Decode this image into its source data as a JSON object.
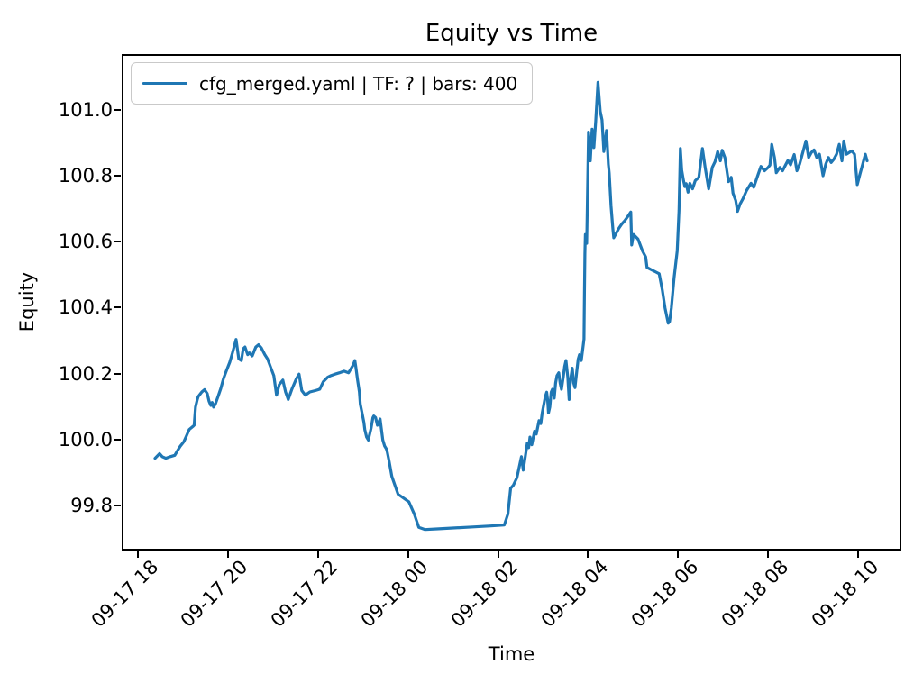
{
  "chart_data": {
    "type": "line",
    "title": "Equity vs Time",
    "xlabel": "Time",
    "ylabel": "Equity",
    "legend_label": "cfg_merged.yaml | TF: ? | bars: 400",
    "legend_position": "upper left",
    "grid": false,
    "line_color": "#1f77b4",
    "x_unit": "hours after 09-17 18:00",
    "xlim_hours": [
      -0.36,
      16.96
    ],
    "ylim": [
      99.664,
      101.168
    ],
    "x_tick_hours": [
      0,
      2,
      4,
      6,
      8,
      10,
      12,
      14,
      16
    ],
    "x_tick_labels": [
      "09-17 18",
      "09-17 20",
      "09-17 22",
      "09-18 00",
      "09-18 02",
      "09-18 04",
      "09-18 06",
      "09-18 08",
      "09-18 10"
    ],
    "y_tick_values": [
      99.8,
      100.0,
      100.2,
      100.4,
      100.6,
      100.8,
      101.0
    ],
    "y_tick_labels": [
      "99.8",
      "100.0",
      "100.2",
      "100.4",
      "100.6",
      "100.8",
      "101.0"
    ],
    "points": [
      [
        0.34,
        99.949
      ],
      [
        0.44,
        99.963
      ],
      [
        0.5,
        99.954
      ],
      [
        0.58,
        99.949
      ],
      [
        0.68,
        99.954
      ],
      [
        0.78,
        99.958
      ],
      [
        0.84,
        99.972
      ],
      [
        0.9,
        99.985
      ],
      [
        0.98,
        99.999
      ],
      [
        1.04,
        100.017
      ],
      [
        1.1,
        100.036
      ],
      [
        1.18,
        100.045
      ],
      [
        1.21,
        100.049
      ],
      [
        1.24,
        100.104
      ],
      [
        1.28,
        100.127
      ],
      [
        1.3,
        100.136
      ],
      [
        1.38,
        100.15
      ],
      [
        1.44,
        100.157
      ],
      [
        1.5,
        100.145
      ],
      [
        1.54,
        100.122
      ],
      [
        1.58,
        100.109
      ],
      [
        1.61,
        100.118
      ],
      [
        1.64,
        100.104
      ],
      [
        1.68,
        100.113
      ],
      [
        1.74,
        100.136
      ],
      [
        1.8,
        100.16
      ],
      [
        1.86,
        100.19
      ],
      [
        1.92,
        100.212
      ],
      [
        2.0,
        100.24
      ],
      [
        2.06,
        100.268
      ],
      [
        2.14,
        100.309
      ],
      [
        2.2,
        100.25
      ],
      [
        2.26,
        100.245
      ],
      [
        2.3,
        100.281
      ],
      [
        2.34,
        100.286
      ],
      [
        2.4,
        100.263
      ],
      [
        2.44,
        100.268
      ],
      [
        2.5,
        100.259
      ],
      [
        2.58,
        100.286
      ],
      [
        2.64,
        100.293
      ],
      [
        2.7,
        100.284
      ],
      [
        2.78,
        100.263
      ],
      [
        2.84,
        100.25
      ],
      [
        2.98,
        100.199
      ],
      [
        3.04,
        100.14
      ],
      [
        3.1,
        100.172
      ],
      [
        3.18,
        100.186
      ],
      [
        3.24,
        100.15
      ],
      [
        3.3,
        100.127
      ],
      [
        3.38,
        100.158
      ],
      [
        3.48,
        100.19
      ],
      [
        3.54,
        100.204
      ],
      [
        3.6,
        100.154
      ],
      [
        3.68,
        100.14
      ],
      [
        3.78,
        100.15
      ],
      [
        3.9,
        100.154
      ],
      [
        4.0,
        100.158
      ],
      [
        4.08,
        100.181
      ],
      [
        4.18,
        100.195
      ],
      [
        4.24,
        100.199
      ],
      [
        4.34,
        100.204
      ],
      [
        4.44,
        100.208
      ],
      [
        4.54,
        100.213
      ],
      [
        4.64,
        100.208
      ],
      [
        4.74,
        100.231
      ],
      [
        4.78,
        100.245
      ],
      [
        4.8,
        100.227
      ],
      [
        4.84,
        100.186
      ],
      [
        4.88,
        100.15
      ],
      [
        4.9,
        100.113
      ],
      [
        4.94,
        100.086
      ],
      [
        4.98,
        100.058
      ],
      [
        5.0,
        100.036
      ],
      [
        5.04,
        100.013
      ],
      [
        5.08,
        100.004
      ],
      [
        5.1,
        100.017
      ],
      [
        5.14,
        100.04
      ],
      [
        5.18,
        100.072
      ],
      [
        5.2,
        100.077
      ],
      [
        5.24,
        100.072
      ],
      [
        5.28,
        100.049
      ],
      [
        5.34,
        100.068
      ],
      [
        5.4,
        100.004
      ],
      [
        5.44,
        99.986
      ],
      [
        5.48,
        99.977
      ],
      [
        5.5,
        99.967
      ],
      [
        5.54,
        99.94
      ],
      [
        5.6,
        99.894
      ],
      [
        5.74,
        99.84
      ],
      [
        5.98,
        99.817
      ],
      [
        6.1,
        99.78
      ],
      [
        6.2,
        99.74
      ],
      [
        6.34,
        99.733
      ],
      [
        6.6,
        99.735
      ],
      [
        7.0,
        99.738
      ],
      [
        7.4,
        99.741
      ],
      [
        7.8,
        99.744
      ],
      [
        8.1,
        99.747
      ],
      [
        8.18,
        99.78
      ],
      [
        8.24,
        99.858
      ],
      [
        8.3,
        99.867
      ],
      [
        8.38,
        99.89
      ],
      [
        8.48,
        99.954
      ],
      [
        8.52,
        99.913
      ],
      [
        8.61,
        99.995
      ],
      [
        8.64,
        99.981
      ],
      [
        8.67,
        100.013
      ],
      [
        8.71,
        99.99
      ],
      [
        8.77,
        100.031
      ],
      [
        8.81,
        100.022
      ],
      [
        8.87,
        100.063
      ],
      [
        8.91,
        100.054
      ],
      [
        8.94,
        100.086
      ],
      [
        9.01,
        100.136
      ],
      [
        9.04,
        100.149
      ],
      [
        9.06,
        100.127
      ],
      [
        9.08,
        100.086
      ],
      [
        9.11,
        100.104
      ],
      [
        9.14,
        100.149
      ],
      [
        9.17,
        100.158
      ],
      [
        9.21,
        100.131
      ],
      [
        9.24,
        100.177
      ],
      [
        9.27,
        100.199
      ],
      [
        9.31,
        100.208
      ],
      [
        9.34,
        100.177
      ],
      [
        9.37,
        100.158
      ],
      [
        9.41,
        100.195
      ],
      [
        9.44,
        100.227
      ],
      [
        9.47,
        100.245
      ],
      [
        9.51,
        100.195
      ],
      [
        9.54,
        100.127
      ],
      [
        9.57,
        100.186
      ],
      [
        9.61,
        100.222
      ],
      [
        9.64,
        100.177
      ],
      [
        9.67,
        100.163
      ],
      [
        9.71,
        100.213
      ],
      [
        9.74,
        100.249
      ],
      [
        9.77,
        100.263
      ],
      [
        9.81,
        100.245
      ],
      [
        9.84,
        100.277
      ],
      [
        9.87,
        100.31
      ],
      [
        9.88,
        100.45
      ],
      [
        9.89,
        100.568
      ],
      [
        9.9,
        100.627
      ],
      [
        9.93,
        100.6
      ],
      [
        9.97,
        100.937
      ],
      [
        10.01,
        100.85
      ],
      [
        10.05,
        100.946
      ],
      [
        10.09,
        100.89
      ],
      [
        10.13,
        100.97
      ],
      [
        10.18,
        101.088
      ],
      [
        10.23,
        101.0
      ],
      [
        10.27,
        100.974
      ],
      [
        10.31,
        100.878
      ],
      [
        10.37,
        100.942
      ],
      [
        10.41,
        100.84
      ],
      [
        10.43,
        100.813
      ],
      [
        10.47,
        100.713
      ],
      [
        10.51,
        100.645
      ],
      [
        10.53,
        100.617
      ],
      [
        10.57,
        100.627
      ],
      [
        10.64,
        100.645
      ],
      [
        10.71,
        100.659
      ],
      [
        10.77,
        100.668
      ],
      [
        10.84,
        100.681
      ],
      [
        10.91,
        100.695
      ],
      [
        10.93,
        100.595
      ],
      [
        10.97,
        100.627
      ],
      [
        11.07,
        100.613
      ],
      [
        11.17,
        100.577
      ],
      [
        11.24,
        100.559
      ],
      [
        11.27,
        100.527
      ],
      [
        11.34,
        100.522
      ],
      [
        11.47,
        100.513
      ],
      [
        11.54,
        100.508
      ],
      [
        11.61,
        100.458
      ],
      [
        11.67,
        100.404
      ],
      [
        11.74,
        100.358
      ],
      [
        11.77,
        100.363
      ],
      [
        11.81,
        100.404
      ],
      [
        11.84,
        100.449
      ],
      [
        11.87,
        100.495
      ],
      [
        11.94,
        100.577
      ],
      [
        11.98,
        100.7
      ],
      [
        12.01,
        100.887
      ],
      [
        12.04,
        100.822
      ],
      [
        12.08,
        100.79
      ],
      [
        12.11,
        100.772
      ],
      [
        12.14,
        100.781
      ],
      [
        12.18,
        100.755
      ],
      [
        12.22,
        100.782
      ],
      [
        12.28,
        100.765
      ],
      [
        12.34,
        100.79
      ],
      [
        12.42,
        100.8
      ],
      [
        12.5,
        100.887
      ],
      [
        12.56,
        100.83
      ],
      [
        12.64,
        100.765
      ],
      [
        12.72,
        100.83
      ],
      [
        12.78,
        100.847
      ],
      [
        12.84,
        100.878
      ],
      [
        12.9,
        100.85
      ],
      [
        12.94,
        100.882
      ],
      [
        13.0,
        100.86
      ],
      [
        13.08,
        100.787
      ],
      [
        13.14,
        100.8
      ],
      [
        13.18,
        100.752
      ],
      [
        13.24,
        100.73
      ],
      [
        13.28,
        100.697
      ],
      [
        13.34,
        100.72
      ],
      [
        13.4,
        100.735
      ],
      [
        13.48,
        100.76
      ],
      [
        13.58,
        100.782
      ],
      [
        13.64,
        100.77
      ],
      [
        13.74,
        100.81
      ],
      [
        13.8,
        100.833
      ],
      [
        13.88,
        100.82
      ],
      [
        13.96,
        100.83
      ],
      [
        14.0,
        100.837
      ],
      [
        14.04,
        100.9
      ],
      [
        14.1,
        100.86
      ],
      [
        14.14,
        100.814
      ],
      [
        14.22,
        100.83
      ],
      [
        14.28,
        100.82
      ],
      [
        14.34,
        100.836
      ],
      [
        14.4,
        100.851
      ],
      [
        14.46,
        100.838
      ],
      [
        14.54,
        100.869
      ],
      [
        14.6,
        100.82
      ],
      [
        14.66,
        100.84
      ],
      [
        14.72,
        100.87
      ],
      [
        14.8,
        100.91
      ],
      [
        14.86,
        100.86
      ],
      [
        14.92,
        100.875
      ],
      [
        14.98,
        100.883
      ],
      [
        15.04,
        100.86
      ],
      [
        15.1,
        100.87
      ],
      [
        15.18,
        100.805
      ],
      [
        15.24,
        100.84
      ],
      [
        15.3,
        100.86
      ],
      [
        15.36,
        100.845
      ],
      [
        15.42,
        100.855
      ],
      [
        15.48,
        100.87
      ],
      [
        15.54,
        100.9
      ],
      [
        15.6,
        100.85
      ],
      [
        15.64,
        100.91
      ],
      [
        15.7,
        100.87
      ],
      [
        15.76,
        100.875
      ],
      [
        15.82,
        100.88
      ],
      [
        15.88,
        100.87
      ],
      [
        15.94,
        100.778
      ],
      [
        16.0,
        100.81
      ],
      [
        16.06,
        100.84
      ],
      [
        16.12,
        100.87
      ],
      [
        16.16,
        100.85
      ]
    ]
  }
}
